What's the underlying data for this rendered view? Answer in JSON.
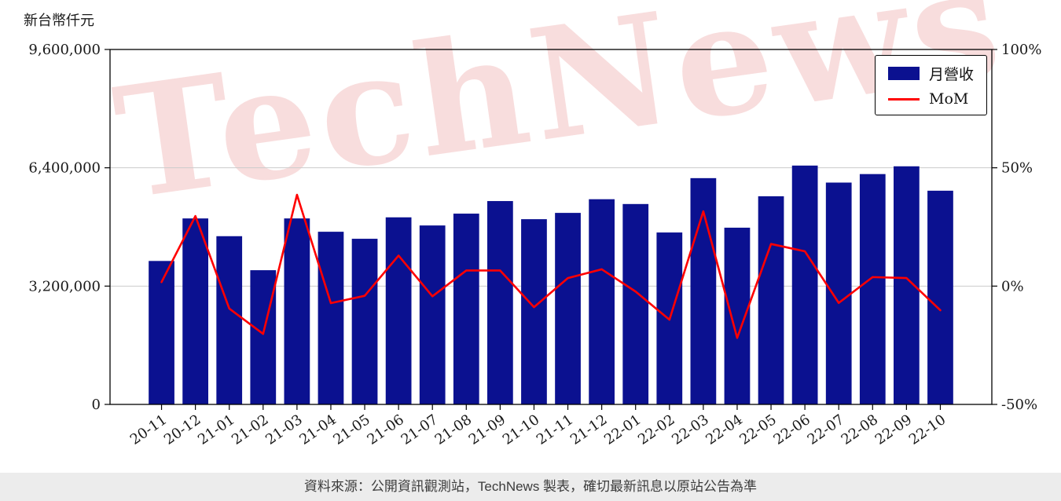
{
  "page": {
    "unit_label": "新台幣仟元",
    "watermark": "TechNews",
    "footer_text": "資料來源：公開資訊觀測站，TechNews 製表，確切最新訊息以原站公告為準"
  },
  "legend": {
    "series1": "月營收",
    "series2": "MoM"
  },
  "chart_data": {
    "type": "bar+line",
    "title": "",
    "grid": "horizontal",
    "legend_position": "top-right",
    "categories": [
      "20-11",
      "20-12",
      "21-01",
      "21-02",
      "21-03",
      "21-04",
      "21-05",
      "21-06",
      "21-07",
      "21-08",
      "21-09",
      "21-10",
      "21-11",
      "21-12",
      "22-01",
      "22-02",
      "22-03",
      "22-04",
      "22-05",
      "22-06",
      "22-07",
      "22-08",
      "22-09",
      "22-10"
    ],
    "series": [
      {
        "name": "月營收",
        "kind": "bar",
        "axis": "left",
        "color": "#0b1190",
        "values": [
          3880000,
          5030000,
          4550000,
          3630000,
          5030000,
          4670000,
          4480000,
          5060000,
          4840000,
          5160000,
          5500000,
          5010000,
          5180000,
          5550000,
          5420000,
          4650000,
          6120000,
          4780000,
          5630000,
          6460000,
          6000000,
          6230000,
          6440000,
          5780000
        ]
      },
      {
        "name": "MoM",
        "kind": "line",
        "axis": "right",
        "color": "#ff0000",
        "values": [
          1.7,
          29.6,
          -9.5,
          -20.2,
          38.6,
          -7.2,
          -4.1,
          12.9,
          -4.3,
          6.6,
          6.6,
          -8.9,
          3.4,
          7.1,
          -2.3,
          -14.2,
          31.6,
          -21.9,
          17.8,
          14.7,
          -7.1,
          3.8,
          3.4,
          -10.2
        ]
      }
    ],
    "left_axis": {
      "label": "新台幣仟元",
      "range": [
        0,
        9600000
      ],
      "ticks": [
        0,
        3200000,
        6400000,
        9600000
      ],
      "tick_labels": [
        "0",
        "3,200,000",
        "6,400,000",
        "9,600,000"
      ]
    },
    "right_axis": {
      "label": "",
      "range": [
        -50,
        100
      ],
      "ticks": [
        -50,
        0,
        50,
        100
      ],
      "tick_labels": [
        "-50%",
        "0%",
        "50%",
        "100%"
      ]
    }
  }
}
